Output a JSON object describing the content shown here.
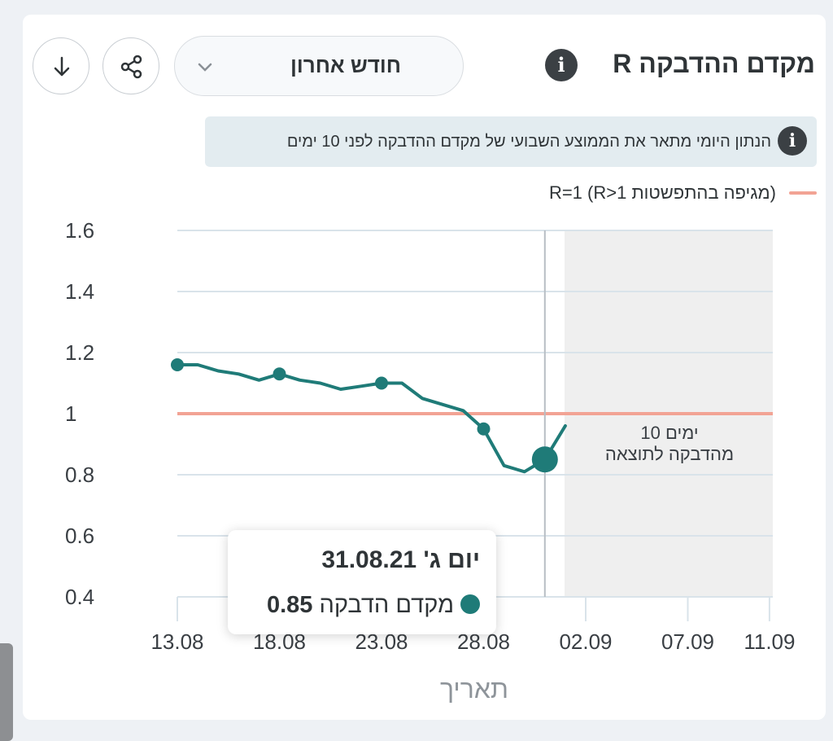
{
  "header": {
    "title": "מקדם ההדבקה R",
    "period_select": "חודש אחרון"
  },
  "note": {
    "text": "הנתון היומי מתאר את הממוצע השבועי של מקדם ההדבקה לפני 10 ימים"
  },
  "legend": {
    "label": "R=1 (R>1 מגיפה בהתפשטות)"
  },
  "forecast_label": {
    "line1": "10 ימים",
    "line2": "מהדבקה לתוצאה"
  },
  "tooltip": {
    "title": "יום ג' 31.08.21",
    "series_label": "מקדם הדבקה",
    "value": "0.85"
  },
  "colors": {
    "line": "#1f7b78",
    "threshold": "#f2a394",
    "forecast_shade": "#efefef",
    "grid": "#d9e3ea"
  },
  "chart_data": {
    "type": "line",
    "xlabel": "תאריך",
    "ylabel": "",
    "ylim": [
      0.4,
      1.6
    ],
    "yticks": [
      "1.6",
      "1.4",
      "1.2",
      "1",
      "0.8",
      "0.6",
      "0.4"
    ],
    "xticks": [
      "13.08",
      "18.08",
      "23.08",
      "28.08",
      "02.09",
      "07.09",
      "11.09"
    ],
    "threshold": 1,
    "series": [
      {
        "x": [
          "13.08",
          "14.08",
          "15.08",
          "16.08",
          "17.08",
          "18.08",
          "19.08",
          "20.08",
          "21.08",
          "22.08",
          "23.08",
          "24.08",
          "25.08",
          "26.08",
          "27.08",
          "28.08",
          "29.08",
          "30.08",
          "31.08",
          "01.09"
        ],
        "values": [
          1.16,
          1.16,
          1.14,
          1.13,
          1.11,
          1.13,
          1.11,
          1.1,
          1.08,
          1.09,
          1.1,
          1.1,
          1.05,
          1.03,
          1.01,
          0.95,
          0.83,
          0.81,
          0.85,
          0.96
        ]
      }
    ],
    "markers": [
      "13.08",
      "18.08",
      "23.08",
      "28.08"
    ],
    "highlight": {
      "x": "31.08",
      "value": 0.85
    },
    "forecast_region": [
      "02.09",
      "11.09"
    ],
    "grid": true
  }
}
